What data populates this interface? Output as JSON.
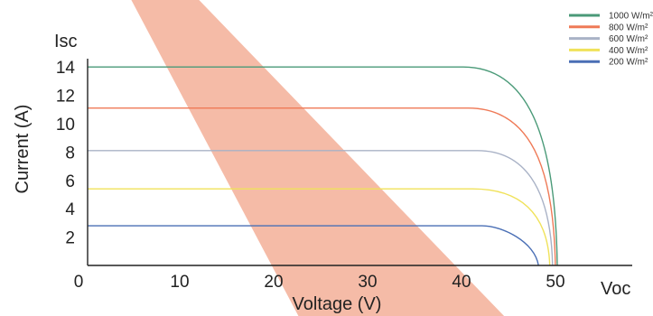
{
  "chart_data": {
    "type": "line",
    "title": "",
    "xlabel": "Voltage (V)",
    "ylabel": "Current (A)",
    "y_axis_end_label": "Isc",
    "x_axis_end_label": "Voc",
    "xlim": [
      0,
      58
    ],
    "ylim": [
      0,
      15
    ],
    "x_ticks": [
      {
        "value": 0,
        "label": "0"
      },
      {
        "value": 10,
        "label": "10"
      },
      {
        "value": 20,
        "label": "20"
      },
      {
        "value": 30,
        "label": "30"
      },
      {
        "value": 40,
        "label": "40"
      },
      {
        "value": 50,
        "label": "50"
      }
    ],
    "y_ticks": [
      {
        "value": 2,
        "label": "2"
      },
      {
        "value": 4,
        "label": "4"
      },
      {
        "value": 6,
        "label": "6"
      },
      {
        "value": 8,
        "label": "8"
      },
      {
        "value": 10,
        "label": "10"
      },
      {
        "value": 12,
        "label": "12"
      },
      {
        "value": 14,
        "label": "14"
      }
    ],
    "grid": false,
    "legend_position": "top-right",
    "highlight_band": {
      "color": "#f4b7a2",
      "top_x": [
        4.4,
        11.4
      ],
      "bottom_x": [
        22.7,
        44.8
      ]
    },
    "series": [
      {
        "name": "1000 W/m²",
        "color": "#4a9a78",
        "isc": 14.0,
        "voc": 50.0,
        "knee_v": 40.0,
        "curve": "sharp"
      },
      {
        "name": "800 W/m²",
        "color": "#ef7a57",
        "isc": 11.1,
        "voc": 49.8,
        "knee_v": 40.5,
        "curve": "sharp"
      },
      {
        "name": "600 W/m²",
        "color": "#a9b2c6",
        "isc": 8.1,
        "voc": 49.5,
        "knee_v": 41.5,
        "curve": "soft"
      },
      {
        "name": "400 W/m²",
        "color": "#f0e25a",
        "isc": 5.4,
        "voc": 49.2,
        "knee_v": 41.0,
        "curve": "soft"
      },
      {
        "name": "200 W/m²",
        "color": "#4a6fb5",
        "isc": 2.8,
        "voc": 48.0,
        "knee_v": 42.0,
        "curve": "drop"
      }
    ]
  }
}
